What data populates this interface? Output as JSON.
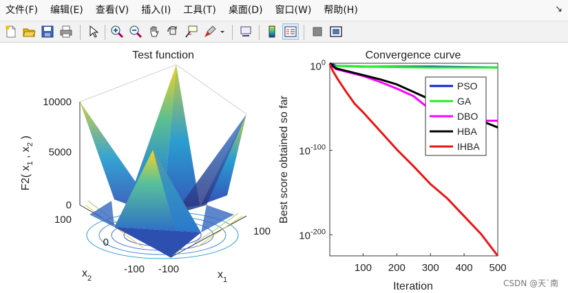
{
  "menu": [
    "文件(F)",
    "编辑(E)",
    "查看(V)",
    "插入(I)",
    "工具(T)",
    "桌面(D)",
    "窗口(W)",
    "帮助(H)"
  ],
  "dock_glyph": "↘",
  "toolbar": {
    "icons": [
      "new-figure-icon",
      "open-file-icon",
      "save-icon",
      "print-icon",
      "select-arrow-icon",
      "zoom-in-icon",
      "zoom-out-icon",
      "pan-hand-icon",
      "rotate-3d-icon",
      "data-cursor-icon",
      "brush-icon",
      "brush-dropdown-icon",
      "link-plot-icon",
      "colorbar-icon",
      "legend-icon",
      "hide-plot-tools-icon",
      "show-plot-tools-icon"
    ]
  },
  "left_plot": {
    "title": "Test function",
    "zlabel": "F2( x",
    "zlabel_sub1": "1",
    "zlabel_mid": " , x",
    "zlabel_sub2": "2",
    "zlabel_end": " )",
    "xlabel": "x",
    "xlabel_sub": "1",
    "ylabel": "x",
    "ylabel_sub": "2",
    "z_ticks": [
      "10000",
      "5000",
      "0"
    ],
    "y_ticks": [
      "100",
      "0",
      "-100"
    ],
    "x_ticks": [
      "-100",
      "100"
    ]
  },
  "chart_data": {
    "type": "line",
    "title": "Convergence curve",
    "xlabel": "Iteration",
    "ylabel": "Best score obtained so far",
    "xlim": [
      1,
      500
    ],
    "yscale": "log",
    "ylim_exp": [
      -225,
      10
    ],
    "x_ticks": [
      "100",
      "200",
      "300",
      "400",
      "500"
    ],
    "y_ticks": [
      {
        "base": "10",
        "exp": "0",
        "value_exp": 0
      },
      {
        "base": "10",
        "exp": "-100",
        "value_exp": -100
      },
      {
        "base": "10",
        "exp": "-200",
        "value_exp": -200
      }
    ],
    "legend_position": "top-right",
    "series": [
      {
        "name": "PSO",
        "color": "#0022cc",
        "x": [
          1,
          20,
          100,
          300,
          500
        ],
        "log10_y": [
          6,
          0,
          -1,
          -1,
          -2
        ]
      },
      {
        "name": "GA",
        "color": "#22ee22",
        "x": [
          1,
          10,
          100,
          300,
          500
        ],
        "log10_y": [
          5,
          0,
          -1,
          -2,
          -2
        ]
      },
      {
        "name": "DBO",
        "color": "#ff00ff",
        "x": [
          1,
          20,
          60,
          100,
          150,
          200,
          250,
          300,
          350,
          400,
          500
        ],
        "log10_y": [
          2,
          -4,
          -8,
          -12,
          -19,
          -27,
          -36,
          -52,
          -60,
          -65,
          -65
        ]
      },
      {
        "name": "HBA",
        "color": "#000000",
        "x": [
          1,
          20,
          60,
          100,
          150,
          200,
          250,
          300,
          350,
          400,
          450,
          500
        ],
        "log10_y": [
          3,
          -3,
          -7,
          -11,
          -16,
          -22,
          -31,
          -40,
          -49,
          -60,
          -65,
          -73
        ]
      },
      {
        "name": "IHBA",
        "color": "#ee1111",
        "x": [
          1,
          10,
          25,
          50,
          75,
          100,
          150,
          200,
          250,
          300,
          350,
          400,
          450,
          500
        ],
        "log10_y": [
          2,
          -6,
          -16,
          -31,
          -45,
          -55,
          -77,
          -99,
          -119,
          -140,
          -157,
          -178,
          -199,
          -225
        ]
      }
    ]
  },
  "watermark": "CSDN @天`南"
}
